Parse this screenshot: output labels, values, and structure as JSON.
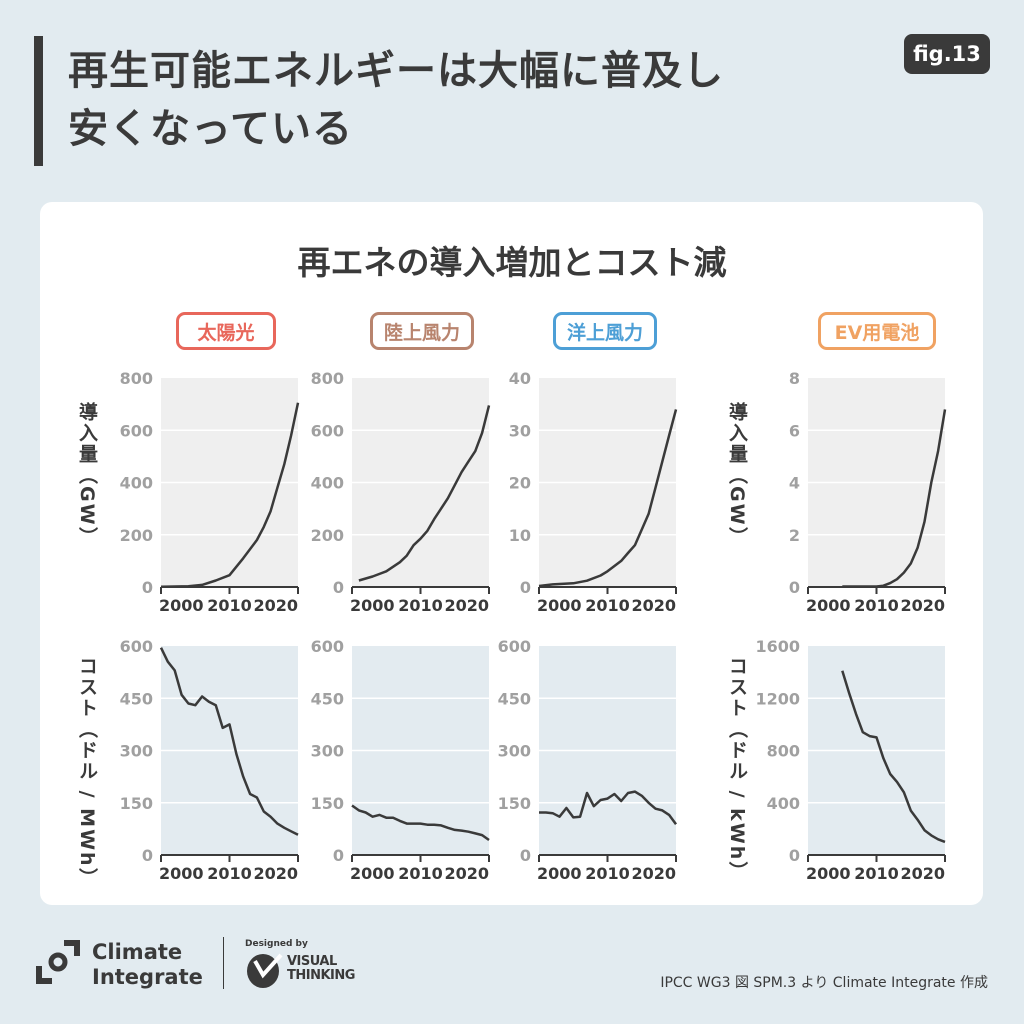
{
  "header": {
    "title_line1": "再生可能エネルギーは大幅に普及し",
    "title_line2": "安くなっている",
    "badge": "fig.13"
  },
  "card": {
    "title": "再エネの導入増加とコスト減",
    "categories": [
      {
        "label": "太陽光",
        "color": "#e8675b"
      },
      {
        "label": "陸上風力",
        "color": "#b8846e"
      },
      {
        "label": "洋上風力",
        "color": "#4d9fd6"
      },
      {
        "label": "EV用電池",
        "color": "#f0a262"
      }
    ],
    "ylabel_install_left": "導入量（GW）",
    "ylabel_install_right": "導入量（GW）",
    "ylabel_cost_left": "コスト（ドル / MWh）",
    "ylabel_cost_right": "コスト（ドル / kWh）"
  },
  "colors": {
    "install_bg": "#efefef",
    "cost_bg": "#e3ebf0",
    "line": "#3a3a3a",
    "tick_text": "#a0a0a0"
  },
  "chart_data": [
    {
      "type": "line",
      "category": "太陽光",
      "metric": "install",
      "xlim": [
        2000,
        2020
      ],
      "ylim": [
        0,
        800
      ],
      "yticks": [
        0,
        200,
        400,
        600,
        800
      ],
      "xticks": [
        2000,
        2010,
        2020
      ],
      "grid": true,
      "points": [
        [
          2000,
          1
        ],
        [
          2004,
          3
        ],
        [
          2006,
          8
        ],
        [
          2008,
          25
        ],
        [
          2010,
          45
        ],
        [
          2012,
          110
        ],
        [
          2014,
          180
        ],
        [
          2015,
          230
        ],
        [
          2016,
          290
        ],
        [
          2017,
          380
        ],
        [
          2018,
          470
        ],
        [
          2019,
          580
        ],
        [
          2020,
          705
        ]
      ]
    },
    {
      "type": "line",
      "category": "陸上風力",
      "metric": "install",
      "xlim": [
        2000,
        2020
      ],
      "ylim": [
        0,
        800
      ],
      "yticks": [
        0,
        200,
        400,
        600,
        800
      ],
      "xticks": [
        2000,
        2010,
        2020
      ],
      "grid": true,
      "points": [
        [
          2001,
          25
        ],
        [
          2003,
          40
        ],
        [
          2005,
          60
        ],
        [
          2007,
          95
        ],
        [
          2008,
          120
        ],
        [
          2009,
          160
        ],
        [
          2010,
          185
        ],
        [
          2011,
          215
        ],
        [
          2012,
          260
        ],
        [
          2013,
          300
        ],
        [
          2014,
          340
        ],
        [
          2015,
          390
        ],
        [
          2016,
          440
        ],
        [
          2017,
          480
        ],
        [
          2018,
          520
        ],
        [
          2019,
          590
        ],
        [
          2020,
          695
        ]
      ]
    },
    {
      "type": "line",
      "category": "洋上風力",
      "metric": "install",
      "xlim": [
        2000,
        2020
      ],
      "ylim": [
        0,
        40
      ],
      "yticks": [
        0,
        10,
        20,
        30,
        40
      ],
      "xticks": [
        2000,
        2010,
        2020
      ],
      "grid": true,
      "points": [
        [
          2000,
          0.2
        ],
        [
          2002,
          0.5
        ],
        [
          2005,
          0.7
        ],
        [
          2007,
          1.2
        ],
        [
          2009,
          2.2
        ],
        [
          2010,
          3
        ],
        [
          2012,
          5
        ],
        [
          2013,
          6.5
        ],
        [
          2014,
          8
        ],
        [
          2015,
          11
        ],
        [
          2016,
          14
        ],
        [
          2017,
          19
        ],
        [
          2018,
          24
        ],
        [
          2019,
          29
        ],
        [
          2020,
          34
        ]
      ]
    },
    {
      "type": "line",
      "category": "EV用電池",
      "metric": "install",
      "xlim": [
        2000,
        2020
      ],
      "ylim": [
        0,
        8
      ],
      "yticks": [
        0,
        2,
        4,
        6,
        8
      ],
      "xticks": [
        2000,
        2010,
        2020
      ],
      "grid": true,
      "points": [
        [
          2005,
          0.02
        ],
        [
          2010,
          0.02
        ],
        [
          2011,
          0.05
        ],
        [
          2012,
          0.15
        ],
        [
          2013,
          0.3
        ],
        [
          2014,
          0.55
        ],
        [
          2015,
          0.9
        ],
        [
          2016,
          1.5
        ],
        [
          2017,
          2.5
        ],
        [
          2018,
          4
        ],
        [
          2019,
          5.2
        ],
        [
          2020,
          6.8
        ]
      ]
    },
    {
      "type": "line",
      "category": "太陽光",
      "metric": "cost",
      "xlim": [
        2000,
        2020
      ],
      "ylim": [
        0,
        600
      ],
      "yticks": [
        0,
        150,
        300,
        450,
        600
      ],
      "xticks": [
        2000,
        2010,
        2020
      ],
      "grid": true,
      "points": [
        [
          2000,
          595
        ],
        [
          2001,
          555
        ],
        [
          2002,
          530
        ],
        [
          2003,
          460
        ],
        [
          2004,
          435
        ],
        [
          2005,
          430
        ],
        [
          2006,
          455
        ],
        [
          2007,
          440
        ],
        [
          2008,
          430
        ],
        [
          2009,
          365
        ],
        [
          2010,
          375
        ],
        [
          2011,
          290
        ],
        [
          2012,
          225
        ],
        [
          2013,
          175
        ],
        [
          2014,
          165
        ],
        [
          2015,
          125
        ],
        [
          2016,
          110
        ],
        [
          2017,
          90
        ],
        [
          2018,
          78
        ],
        [
          2019,
          68
        ],
        [
          2020,
          58
        ]
      ]
    },
    {
      "type": "line",
      "category": "陸上風力",
      "metric": "cost",
      "xlim": [
        2000,
        2020
      ],
      "ylim": [
        0,
        600
      ],
      "yticks": [
        0,
        150,
        300,
        450,
        600
      ],
      "xticks": [
        2000,
        2010,
        2020
      ],
      "grid": true,
      "points": [
        [
          2000,
          142
        ],
        [
          2001,
          128
        ],
        [
          2002,
          122
        ],
        [
          2003,
          110
        ],
        [
          2004,
          115
        ],
        [
          2005,
          107
        ],
        [
          2006,
          107
        ],
        [
          2007,
          98
        ],
        [
          2008,
          90
        ],
        [
          2009,
          90
        ],
        [
          2010,
          90
        ],
        [
          2011,
          87
        ],
        [
          2012,
          87
        ],
        [
          2013,
          85
        ],
        [
          2014,
          78
        ],
        [
          2015,
          72
        ],
        [
          2016,
          70
        ],
        [
          2017,
          67
        ],
        [
          2018,
          62
        ],
        [
          2019,
          57
        ],
        [
          2020,
          43
        ]
      ]
    },
    {
      "type": "line",
      "category": "洋上風力",
      "metric": "cost",
      "xlim": [
        2000,
        2020
      ],
      "ylim": [
        0,
        600
      ],
      "yticks": [
        0,
        150,
        300,
        450,
        600
      ],
      "xticks": [
        2000,
        2010,
        2020
      ],
      "grid": true,
      "points": [
        [
          2000,
          122
        ],
        [
          2001,
          122
        ],
        [
          2002,
          120
        ],
        [
          2003,
          110
        ],
        [
          2004,
          135
        ],
        [
          2005,
          108
        ],
        [
          2006,
          110
        ],
        [
          2007,
          178
        ],
        [
          2008,
          140
        ],
        [
          2009,
          158
        ],
        [
          2010,
          162
        ],
        [
          2011,
          175
        ],
        [
          2012,
          155
        ],
        [
          2013,
          178
        ],
        [
          2014,
          182
        ],
        [
          2015,
          170
        ],
        [
          2016,
          150
        ],
        [
          2017,
          133
        ],
        [
          2018,
          128
        ],
        [
          2019,
          115
        ],
        [
          2020,
          88
        ]
      ]
    },
    {
      "type": "line",
      "category": "EV用電池",
      "metric": "cost",
      "xlim": [
        2000,
        2020
      ],
      "ylim": [
        0,
        1600
      ],
      "yticks": [
        0,
        400,
        800,
        1200,
        1600
      ],
      "xticks": [
        2000,
        2010,
        2020
      ],
      "grid": true,
      "points": [
        [
          2005,
          1410
        ],
        [
          2006,
          1240
        ],
        [
          2007,
          1080
        ],
        [
          2008,
          940
        ],
        [
          2009,
          910
        ],
        [
          2010,
          900
        ],
        [
          2011,
          740
        ],
        [
          2012,
          620
        ],
        [
          2013,
          560
        ],
        [
          2014,
          480
        ],
        [
          2015,
          340
        ],
        [
          2016,
          270
        ],
        [
          2017,
          190
        ],
        [
          2018,
          150
        ],
        [
          2019,
          120
        ],
        [
          2020,
          100
        ]
      ]
    }
  ],
  "footer": {
    "logo_line1": "Climate",
    "logo_line2": "Integrate",
    "designed_by": "Designed by",
    "vt_line1": "VISUAL",
    "vt_line2": "THINKING",
    "source": "IPCC WG3 図 SPM.3 より Climate Integrate 作成"
  }
}
